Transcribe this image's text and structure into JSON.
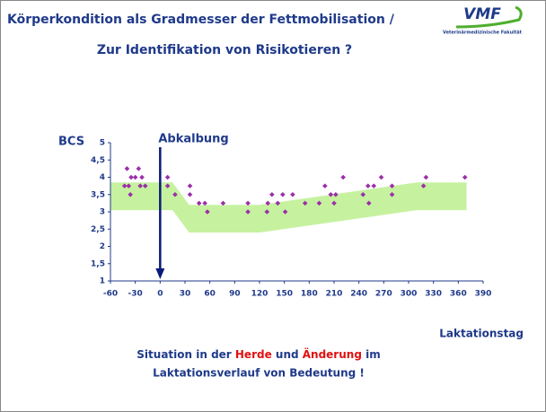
{
  "header": {
    "title_line1": "Körperkondition als Gradmesser der Fettmobilisation /",
    "title_line2": "Zur Identifikation von Risikotieren ?",
    "logo": "VMF",
    "logo_subtitle": "Veterinärmedizinische Fakultät"
  },
  "chart_data": {
    "type": "scatter",
    "y_label": "BCS",
    "x_label": "Laktationstag",
    "annotation": {
      "text": "Abkalbung",
      "x": 0
    },
    "color": "#9b2fa8",
    "x": [
      -43,
      -40,
      -38,
      -36,
      -35,
      -30,
      -26,
      -24,
      -22,
      -18,
      9,
      9,
      18,
      36,
      36,
      47,
      54,
      57,
      76,
      106,
      106,
      129,
      130,
      135,
      142,
      148,
      151,
      160,
      175,
      192,
      199,
      206,
      210,
      212,
      221,
      245,
      251,
      252,
      258,
      267,
      280,
      280,
      318,
      321,
      368
    ],
    "values": [
      3.75,
      4.25,
      3.75,
      3.5,
      4,
      4,
      4.25,
      3.75,
      4,
      3.75,
      4,
      3.75,
      3.5,
      3.75,
      3.5,
      3.25,
      3.25,
      3,
      3.25,
      3.25,
      3,
      3,
      3.25,
      3.5,
      3.25,
      3.5,
      3,
      3.5,
      3.25,
      3.25,
      3.75,
      3.5,
      3.25,
      3.5,
      4,
      3.5,
      3.75,
      3.25,
      3.75,
      4,
      3.75,
      3.5,
      3.75,
      4,
      4
    ],
    "band": {
      "color": "#c6f2a0",
      "x": [
        -60,
        15,
        35,
        120,
        310,
        370
      ],
      "upper": [
        3.85,
        3.85,
        3.2,
        3.2,
        3.85,
        3.85
      ],
      "lower": [
        3.05,
        3.05,
        2.4,
        2.4,
        3.05,
        3.05
      ]
    },
    "xlim": [
      -60,
      390
    ],
    "xticks": [
      -60,
      -30,
      0,
      30,
      60,
      90,
      120,
      150,
      180,
      210,
      240,
      270,
      300,
      330,
      360,
      390
    ],
    "ylim": [
      1,
      5
    ],
    "yticks": [
      1,
      {
        "value": 1.5,
        "label": "1,5"
      },
      2,
      {
        "value": 2.5,
        "label": "2,5"
      },
      3,
      {
        "value": 3.5,
        "label": "3,5"
      },
      4,
      {
        "value": 4.5,
        "label": "4,5"
      },
      5
    ]
  },
  "footer": {
    "line1": [
      {
        "text": "Situation in der ",
        "color": "#1f3a8a"
      },
      {
        "text": "Herde",
        "color": "#e01010"
      },
      {
        "text": " und ",
        "color": "#1f3a8a"
      },
      {
        "text": "Änderung",
        "color": "#e01010"
      },
      {
        "text": " im",
        "color": "#1f3a8a"
      }
    ],
    "line2": "Laktationsverlauf von Bedeutung !"
  }
}
